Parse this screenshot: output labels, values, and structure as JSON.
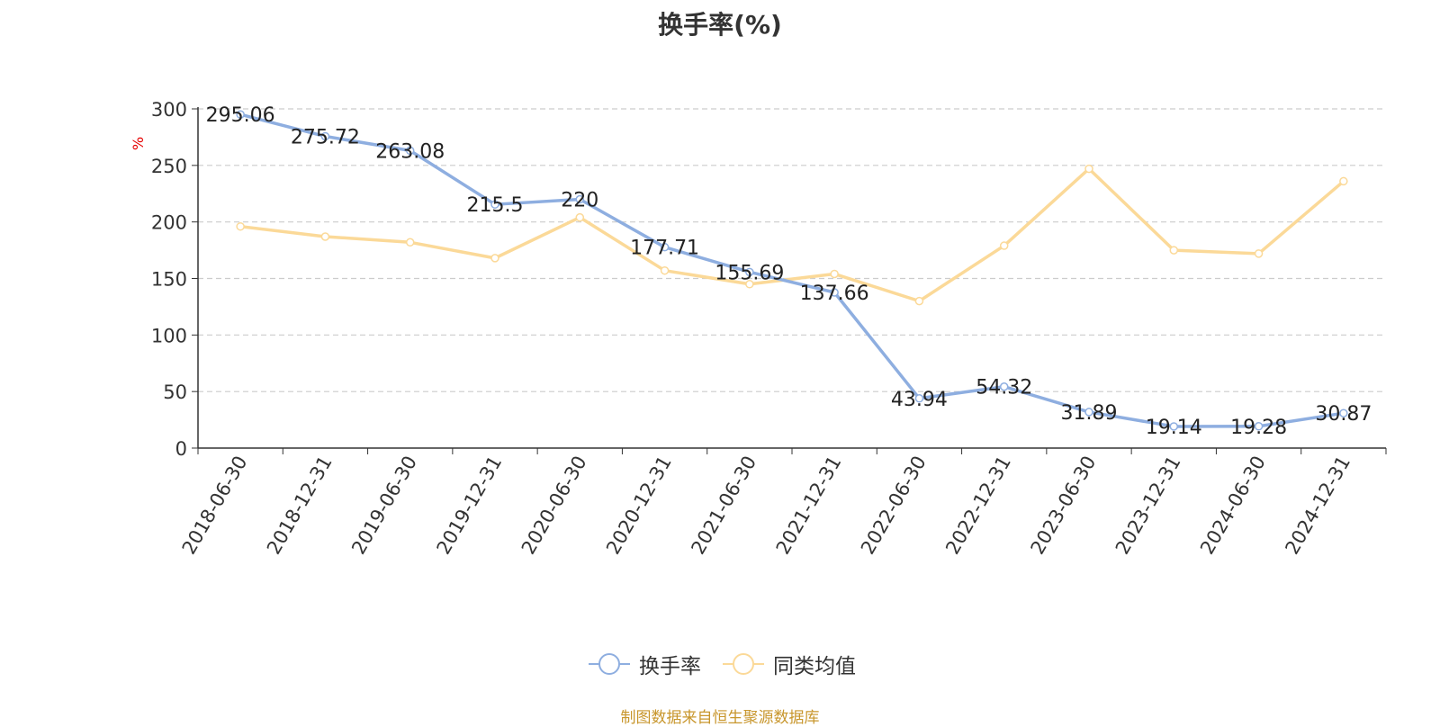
{
  "chart_data": {
    "type": "line",
    "title": "换手率(%)",
    "ylabel": "%",
    "xlabel": "",
    "ylim": [
      0,
      300
    ],
    "yticks": [
      0,
      50,
      100,
      150,
      200,
      250,
      300
    ],
    "grid": true,
    "legend_position": "bottom",
    "categories": [
      "2018-06-30",
      "2018-12-31",
      "2019-06-30",
      "2019-12-31",
      "2020-06-30",
      "2020-12-31",
      "2021-06-30",
      "2021-12-31",
      "2022-06-30",
      "2022-12-31",
      "2023-06-30",
      "2023-12-31",
      "2024-06-30",
      "2024-12-31"
    ],
    "series": [
      {
        "name": "换手率",
        "color": "#8eaee0",
        "values": [
          295.06,
          275.72,
          263.08,
          215.5,
          220,
          177.71,
          155.69,
          137.66,
          43.94,
          54.32,
          31.89,
          19.14,
          19.28,
          30.87
        ],
        "labels": [
          "295.06",
          "275.72",
          "263.08",
          "215.5",
          "220",
          "177.71",
          "155.69",
          "137.66",
          "43.94",
          "54.32",
          "31.89",
          "19.14",
          "19.28",
          "30.87"
        ]
      },
      {
        "name": "同类均值",
        "color": "#fbd998",
        "values": [
          196,
          187,
          182,
          168,
          204,
          157,
          145,
          154,
          130,
          179,
          247,
          175,
          172,
          236
        ]
      }
    ]
  },
  "footer": "制图数据来自恒生聚源数据库"
}
